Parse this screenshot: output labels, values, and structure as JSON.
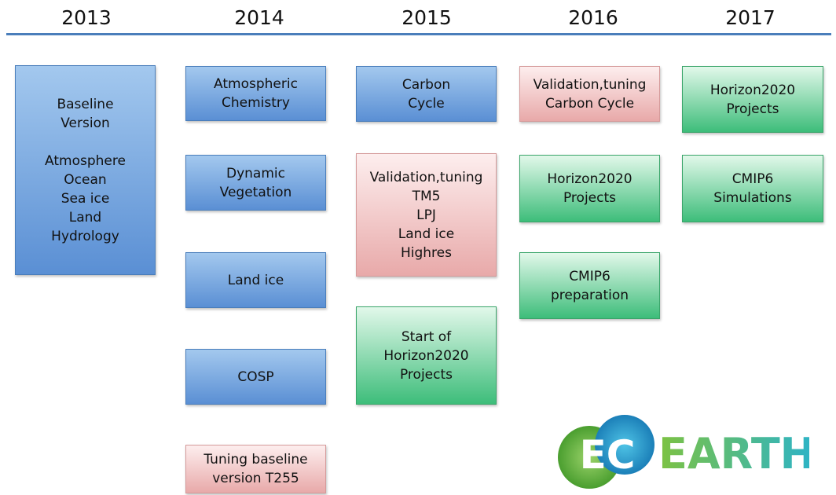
{
  "years": [
    "2013",
    "2014",
    "2015",
    "2016",
    "2017"
  ],
  "boxes": [
    {
      "paragraphs": [
        [
          "Baseline",
          "Version"
        ],
        [
          "Atmosphere",
          "Ocean",
          "Sea ice",
          "Land",
          "Hydrology"
        ]
      ]
    },
    {
      "paragraphs": [
        [
          "Atmospheric",
          "Chemistry"
        ]
      ]
    },
    {
      "paragraphs": [
        [
          "Dynamic",
          "Vegetation"
        ]
      ]
    },
    {
      "paragraphs": [
        [
          "Land ice"
        ]
      ]
    },
    {
      "paragraphs": [
        [
          "COSP"
        ]
      ]
    },
    {
      "paragraphs": [
        [
          "Tuning baseline",
          "version T255"
        ]
      ]
    },
    {
      "paragraphs": [
        [
          "Carbon",
          "Cycle"
        ]
      ]
    },
    {
      "paragraphs": [
        [
          "Validation,tuning",
          "TM5",
          "LPJ",
          "Land ice",
          "Highres"
        ]
      ]
    },
    {
      "paragraphs": [
        [
          "Start of",
          "Horizon2020",
          "Projects"
        ]
      ]
    },
    {
      "paragraphs": [
        [
          "Validation,tuning",
          "Carbon Cycle"
        ]
      ]
    },
    {
      "paragraphs": [
        [
          "Horizon2020",
          "Projects"
        ]
      ]
    },
    {
      "paragraphs": [
        [
          "CMIP6",
          "preparation"
        ]
      ]
    },
    {
      "paragraphs": [
        [
          "Horizon2020",
          "Projects"
        ]
      ]
    },
    {
      "paragraphs": [
        [
          "CMIP6",
          "Simulations"
        ]
      ]
    }
  ],
  "logo": {
    "left": "EC",
    "right": "EARTH"
  }
}
